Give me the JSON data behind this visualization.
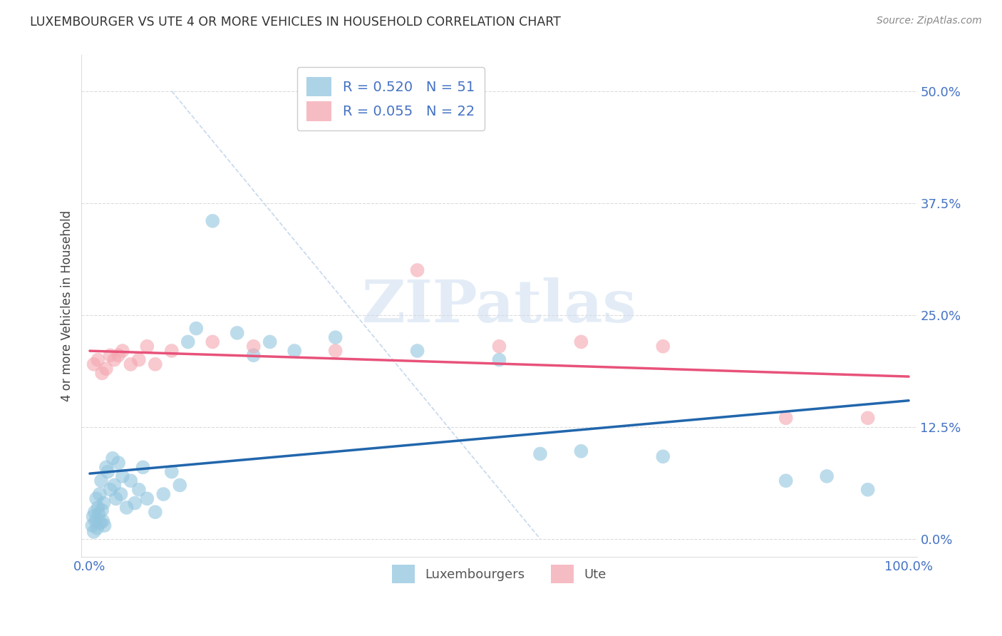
{
  "title": "LUXEMBOURGER VS UTE 4 OR MORE VEHICLES IN HOUSEHOLD CORRELATION CHART",
  "source": "Source: ZipAtlas.com",
  "ylabel": "4 or more Vehicles in Household",
  "xlim": [
    -1.0,
    101.0
  ],
  "ylim": [
    -2.0,
    54.0
  ],
  "yticks": [
    0.0,
    12.5,
    25.0,
    37.5,
    50.0
  ],
  "ytick_labels": [
    "0.0%",
    "12.5%",
    "25.0%",
    "37.5%",
    "50.0%"
  ],
  "legend_label1": "Luxembourgers",
  "legend_label2": "Ute",
  "color_blue": "#92c5de",
  "color_pink": "#f4a6b0",
  "color_blue_line": "#2166ac",
  "color_pink_line": "#e8527a",
  "color_diag": "#b8cfe8",
  "color_grid": "#cccccc",
  "blue_points": [
    [
      0.3,
      1.5
    ],
    [
      0.4,
      2.5
    ],
    [
      0.5,
      0.8
    ],
    [
      0.6,
      3.0
    ],
    [
      0.7,
      2.0
    ],
    [
      0.8,
      4.5
    ],
    [
      0.9,
      1.2
    ],
    [
      1.0,
      3.5
    ],
    [
      1.1,
      2.8
    ],
    [
      1.2,
      5.0
    ],
    [
      1.3,
      1.8
    ],
    [
      1.4,
      6.5
    ],
    [
      1.5,
      3.2
    ],
    [
      1.6,
      2.0
    ],
    [
      1.7,
      4.0
    ],
    [
      1.8,
      1.5
    ],
    [
      2.0,
      8.0
    ],
    [
      2.2,
      7.5
    ],
    [
      2.5,
      5.5
    ],
    [
      2.8,
      9.0
    ],
    [
      3.0,
      6.0
    ],
    [
      3.2,
      4.5
    ],
    [
      3.5,
      8.5
    ],
    [
      3.8,
      5.0
    ],
    [
      4.0,
      7.0
    ],
    [
      4.5,
      3.5
    ],
    [
      5.0,
      6.5
    ],
    [
      5.5,
      4.0
    ],
    [
      6.0,
      5.5
    ],
    [
      6.5,
      8.0
    ],
    [
      7.0,
      4.5
    ],
    [
      8.0,
      3.0
    ],
    [
      9.0,
      5.0
    ],
    [
      10.0,
      7.5
    ],
    [
      11.0,
      6.0
    ],
    [
      12.0,
      22.0
    ],
    [
      13.0,
      23.5
    ],
    [
      15.0,
      35.5
    ],
    [
      18.0,
      23.0
    ],
    [
      20.0,
      20.5
    ],
    [
      22.0,
      22.0
    ],
    [
      25.0,
      21.0
    ],
    [
      30.0,
      22.5
    ],
    [
      40.0,
      21.0
    ],
    [
      50.0,
      20.0
    ],
    [
      55.0,
      9.5
    ],
    [
      60.0,
      9.8
    ],
    [
      70.0,
      9.2
    ],
    [
      85.0,
      6.5
    ],
    [
      90.0,
      7.0
    ],
    [
      95.0,
      5.5
    ]
  ],
  "pink_points": [
    [
      0.5,
      19.5
    ],
    [
      1.0,
      20.0
    ],
    [
      1.5,
      18.5
    ],
    [
      2.0,
      19.0
    ],
    [
      2.5,
      20.5
    ],
    [
      3.0,
      20.0
    ],
    [
      3.5,
      20.5
    ],
    [
      4.0,
      21.0
    ],
    [
      5.0,
      19.5
    ],
    [
      6.0,
      20.0
    ],
    [
      7.0,
      21.5
    ],
    [
      8.0,
      19.5
    ],
    [
      10.0,
      21.0
    ],
    [
      15.0,
      22.0
    ],
    [
      20.0,
      21.5
    ],
    [
      30.0,
      21.0
    ],
    [
      40.0,
      30.0
    ],
    [
      50.0,
      21.5
    ],
    [
      60.0,
      22.0
    ],
    [
      70.0,
      21.5
    ],
    [
      85.0,
      13.5
    ],
    [
      95.0,
      13.5
    ]
  ]
}
